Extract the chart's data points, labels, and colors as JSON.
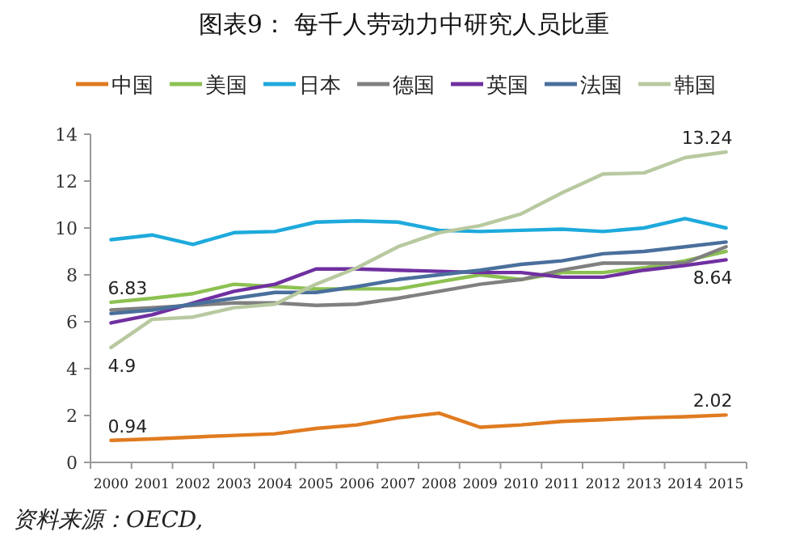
{
  "chart_data": {
    "type": "line",
    "title": "图表9：  每千人劳动力中研究人员比重",
    "categories": [
      "2000",
      "2001",
      "2002",
      "2003",
      "2004",
      "2005",
      "2006",
      "2007",
      "2008",
      "2009",
      "2010",
      "2011",
      "2012",
      "2013",
      "2014",
      "2015"
    ],
    "series": [
      {
        "name": "中国",
        "color": "#e07b20",
        "values": [
          0.94,
          1.0,
          1.08,
          1.15,
          1.22,
          1.45,
          1.6,
          1.9,
          2.1,
          1.5,
          1.6,
          1.75,
          1.82,
          1.9,
          1.95,
          2.02
        ]
      },
      {
        "name": "美国",
        "color": "#8cc152",
        "values": [
          6.83,
          7.0,
          7.2,
          7.6,
          7.5,
          7.4,
          7.4,
          7.4,
          7.7,
          8.0,
          7.8,
          8.1,
          8.1,
          8.3,
          8.6,
          9.0
        ]
      },
      {
        "name": "日本",
        "color": "#1eaadc",
        "values": [
          9.5,
          9.7,
          9.3,
          9.8,
          9.85,
          10.25,
          10.3,
          10.25,
          9.9,
          9.85,
          9.9,
          9.95,
          9.85,
          10.0,
          10.4,
          10.0
        ]
      },
      {
        "name": "德国",
        "color": "#808080",
        "values": [
          6.5,
          6.6,
          6.7,
          6.8,
          6.8,
          6.7,
          6.75,
          7.0,
          7.3,
          7.6,
          7.8,
          8.2,
          8.5,
          8.5,
          8.5,
          9.2
        ]
      },
      {
        "name": "英国",
        "color": "#7030a0",
        "values": [
          5.95,
          6.3,
          6.8,
          7.3,
          7.6,
          8.25,
          8.25,
          8.2,
          8.15,
          8.1,
          8.1,
          7.9,
          7.9,
          8.2,
          8.4,
          8.64
        ]
      },
      {
        "name": "法国",
        "color": "#4a6f9c",
        "values": [
          6.35,
          6.5,
          6.75,
          7.0,
          7.25,
          7.25,
          7.5,
          7.8,
          8.0,
          8.2,
          8.45,
          8.6,
          8.9,
          9.0,
          9.2,
          9.4
        ]
      },
      {
        "name": "韩国",
        "color": "#b8c9a0",
        "values": [
          4.9,
          6.1,
          6.2,
          6.6,
          6.75,
          7.6,
          8.3,
          9.2,
          9.8,
          10.1,
          10.6,
          11.5,
          12.3,
          12.35,
          13.0,
          13.24
        ]
      }
    ],
    "ylim": [
      0,
      14
    ],
    "yticks": [
      0,
      2,
      4,
      6,
      8,
      10,
      12,
      14
    ],
    "grid": false,
    "legend": "top",
    "marker": "none",
    "line_style": "solid",
    "annotations": [
      {
        "text": "6.83",
        "x": "2000",
        "y": 6.83
      },
      {
        "text": "4.9",
        "x": "2000",
        "y": 4.9
      },
      {
        "text": "0.94",
        "x": "2000",
        "y": 0.94
      },
      {
        "text": "13.24",
        "x": "2015",
        "y": 13.24
      },
      {
        "text": "8.64",
        "x": "2015",
        "y": 8.64
      },
      {
        "text": "2.02",
        "x": "2015",
        "y": 2.02
      },
      "资料来源：OECD,"
    ]
  }
}
